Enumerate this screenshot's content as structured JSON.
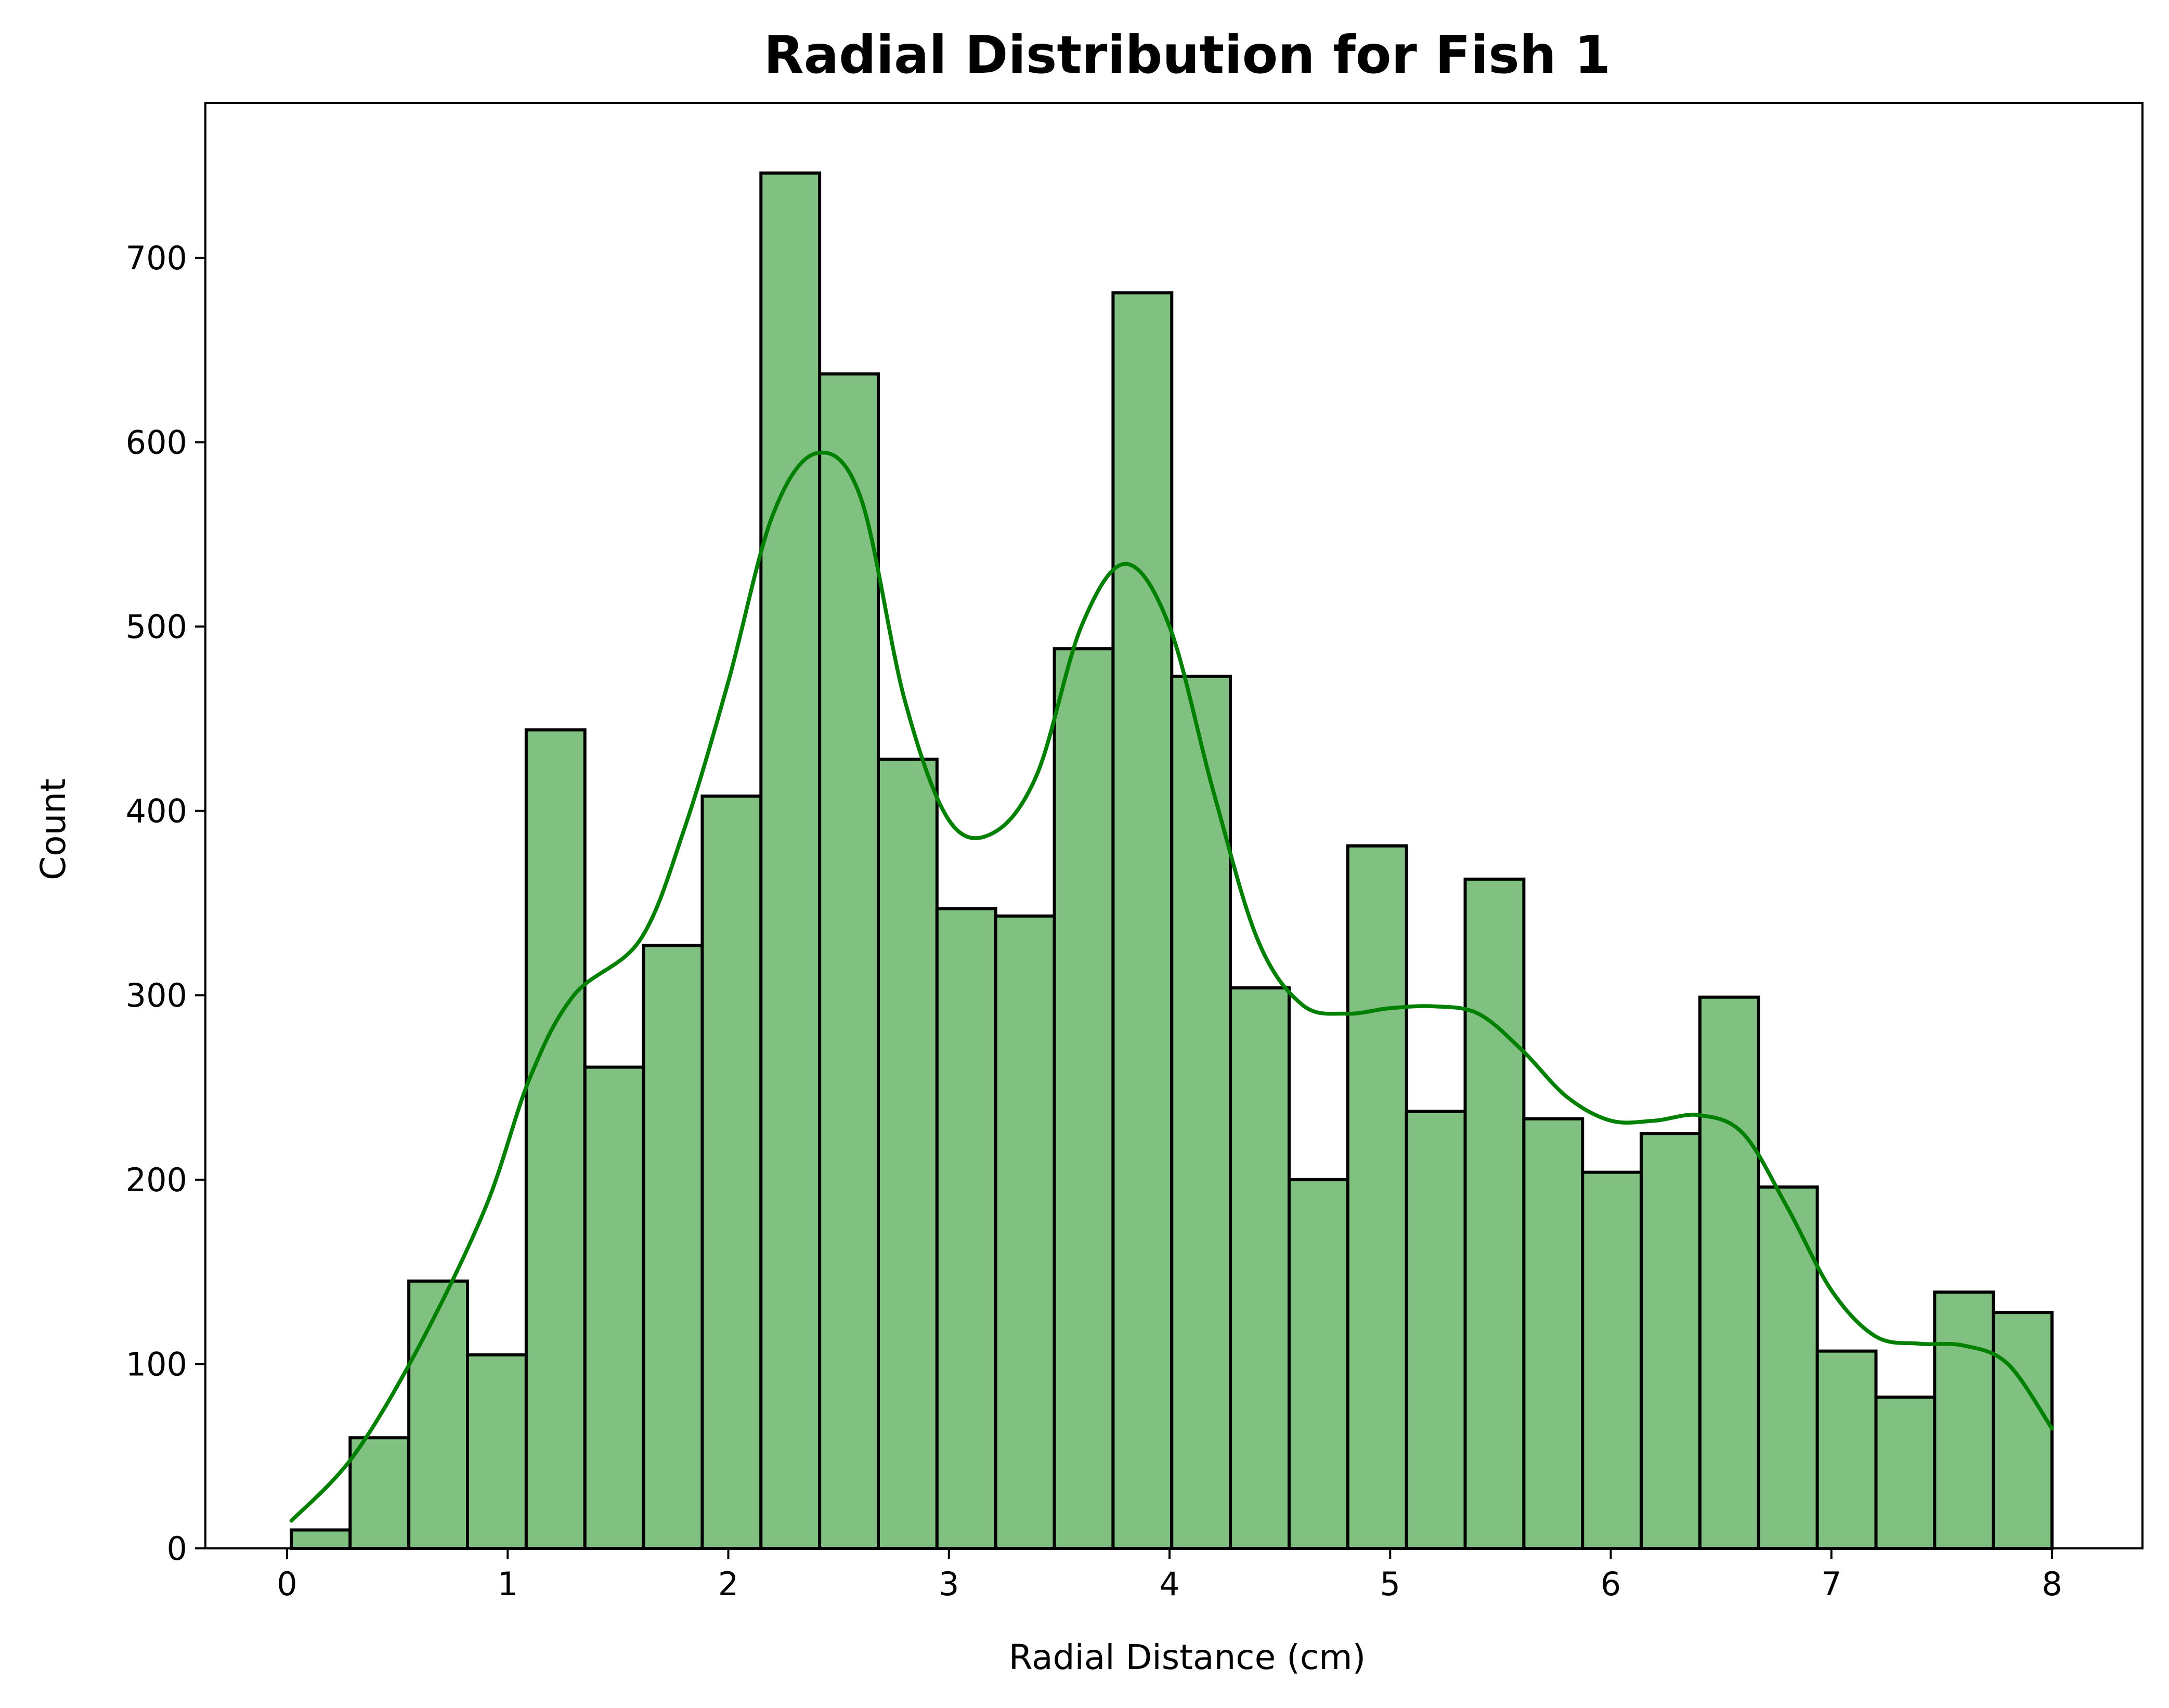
{
  "chart_data": {
    "type": "bar",
    "title": "Radial Distribution for Fish 1",
    "xlabel": "Radial Distance (cm)",
    "ylabel": "Count",
    "xlim": [
      -0.37,
      8.41
    ],
    "ylim": [
      0,
      784
    ],
    "xticks": [
      0,
      1,
      2,
      3,
      4,
      5,
      6,
      7,
      8
    ],
    "yticks": [
      0,
      100,
      200,
      300,
      400,
      500,
      600,
      700
    ],
    "bin_edges": [
      0.02,
      0.286,
      0.552,
      0.818,
      1.084,
      1.35,
      1.616,
      1.882,
      2.148,
      2.414,
      2.68,
      2.946,
      3.212,
      3.478,
      3.744,
      4.01,
      4.276,
      4.542,
      4.808,
      5.074,
      5.34,
      5.606,
      5.872,
      6.138,
      6.404,
      6.67,
      6.936,
      7.202,
      7.468,
      7.734,
      8.0
    ],
    "values": [
      10,
      60,
      145,
      105,
      444,
      261,
      327,
      408,
      746,
      637,
      428,
      347,
      343,
      488,
      681,
      473,
      304,
      200,
      381,
      237,
      363,
      233,
      204,
      225,
      299,
      196,
      107,
      82,
      139,
      128
    ],
    "kde": {
      "x": [
        0.02,
        0.3,
        0.6,
        0.9,
        1.1,
        1.3,
        1.6,
        1.8,
        2.0,
        2.2,
        2.4,
        2.6,
        2.8,
        3.0,
        3.2,
        3.4,
        3.6,
        3.8,
        4.0,
        4.2,
        4.4,
        4.6,
        4.8,
        5.0,
        5.2,
        5.4,
        5.6,
        5.8,
        6.0,
        6.2,
        6.4,
        6.6,
        6.8,
        7.0,
        7.2,
        7.4,
        7.6,
        7.8,
        8.0
      ],
      "y": [
        15,
        50,
        110,
        185,
        255,
        300,
        330,
        390,
        470,
        560,
        594,
        570,
        460,
        395,
        388,
        420,
        500,
        534,
        500,
        410,
        330,
        295,
        290,
        293,
        294,
        290,
        270,
        245,
        232,
        232,
        235,
        225,
        185,
        140,
        115,
        111,
        110,
        100,
        65
      ]
    },
    "colors": {
      "bar_fill": "#80c080",
      "bar_edge": "#000000",
      "kde_line": "#008000"
    },
    "grid": false,
    "legend": "none"
  }
}
